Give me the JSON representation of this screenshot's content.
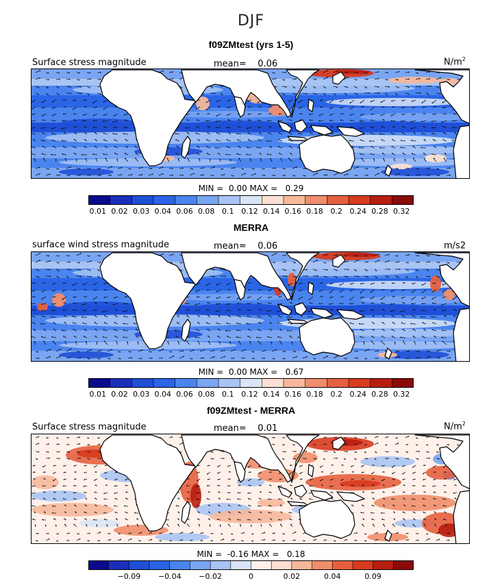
{
  "season": "DJF",
  "palette_seq": [
    "#0a0a8c",
    "#1a2fb8",
    "#1f4fd6",
    "#2a65e6",
    "#4a84ef",
    "#7aa5f2",
    "#a8c4f4",
    "#d9e5f7",
    "#fbdfd2",
    "#f6b89c",
    "#ef8e6c",
    "#e6603f",
    "#d83a1f",
    "#b81e10",
    "#8a0a08"
  ],
  "palette_div": [
    "#0a0a8c",
    "#1a2fb8",
    "#1f4fd6",
    "#2a65e6",
    "#4a84ef",
    "#7aa5f2",
    "#a8c4f4",
    "#d9e5f7",
    "#fff1ea",
    "#fbdfd2",
    "#f6b89c",
    "#ef8e6c",
    "#e6603f",
    "#d83a1f",
    "#b81e10",
    "#8a0a08"
  ],
  "panels": [
    {
      "id": "model",
      "title": "f09ZMtest (yrs 1-5)",
      "variable": "Surface stress magnitude",
      "mean_label": "mean=",
      "mean_value": "0.06",
      "units": "N/m",
      "units_sup": "2",
      "min_label": "MIN =",
      "min_value": "0.00",
      "max_label": "MAX =",
      "max_value": "0.29",
      "colorbar": "seq",
      "ticks": [
        "0.01",
        "0.02",
        "0.03",
        "0.04",
        "0.06",
        "0.08",
        "0.1",
        "0.12",
        "0.14",
        "0.16",
        "0.18",
        "0.2",
        "0.24",
        "0.28",
        "0.32"
      ]
    },
    {
      "id": "obs",
      "title": "MERRA",
      "variable": "surface wind stress magnitude",
      "mean_label": "mean=",
      "mean_value": "0.06",
      "units": "m/s2",
      "units_sup": "",
      "min_label": "MIN =",
      "min_value": "0.00",
      "max_label": "MAX =",
      "max_value": "0.67",
      "colorbar": "seq",
      "ticks": [
        "0.01",
        "0.02",
        "0.03",
        "0.04",
        "0.06",
        "0.08",
        "0.1",
        "0.12",
        "0.14",
        "0.16",
        "0.18",
        "0.2",
        "0.24",
        "0.28",
        "0.32"
      ]
    },
    {
      "id": "diff",
      "title": "f09ZMtest - MERRA",
      "variable": "Surface stress magnitude",
      "mean_label": "mean=",
      "mean_value": "0.01",
      "units": "N/m",
      "units_sup": "2",
      "min_label": "MIN =",
      "min_value": "-0.16",
      "max_label": "MAX =",
      "max_value": "0.18",
      "colorbar": "div",
      "ticks": [
        "−0.09",
        "−0.04",
        "−0.02",
        "0",
        "0.02",
        "0.04",
        "0.09"
      ]
    }
  ]
}
